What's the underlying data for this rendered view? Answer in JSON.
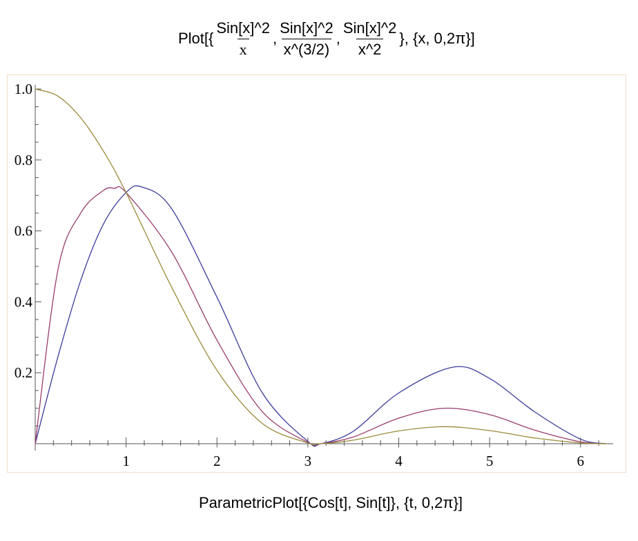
{
  "input_cell": {
    "prefix": "Plot[{",
    "fractions": [
      {
        "num": "Sin[x]^2",
        "den": "x"
      },
      {
        "num": "Sin[x]^2",
        "den": "x^(3/2)"
      },
      {
        "num": "Sin[x]^2",
        "den": "x^2"
      }
    ],
    "separator": ",",
    "suffix": "}, {x, 0,2π}]"
  },
  "bottom_cell": {
    "text": "ParametricPlot[{Cos[t], Sin[t]}, {t, 0,2π}]"
  },
  "chart_data": {
    "type": "line",
    "xlim": [
      0,
      6.2832
    ],
    "ylim": [
      0,
      1.0
    ],
    "x_ticks": [
      "1",
      "2",
      "3",
      "4",
      "5",
      "6"
    ],
    "y_ticks": [
      "0.2",
      "0.4",
      "0.6",
      "0.8",
      "1.0"
    ],
    "grid": false,
    "series": [
      {
        "color": "#3b3b9a",
        "x": [
          0,
          0.25,
          0.5,
          0.75,
          1.0,
          1.17,
          1.5,
          2.0,
          2.5,
          3.0,
          3.1416,
          3.5,
          4.0,
          4.6,
          5.0,
          5.5,
          6.0,
          6.2832
        ],
        "y": [
          0,
          0.245,
          0.46,
          0.619,
          0.708,
          0.724,
          0.663,
          0.413,
          0.143,
          0.0066,
          0,
          0.035,
          0.143,
          0.216,
          0.184,
          0.089,
          0.013,
          0
        ]
      },
      {
        "color": "#9a3b6a",
        "x": [
          0,
          0.25,
          0.5,
          0.75,
          0.87,
          1.0,
          1.5,
          2.0,
          2.5,
          3.0,
          3.1416,
          3.5,
          4.0,
          4.5,
          5.0,
          5.5,
          6.0,
          6.2832
        ],
        "y": [
          0,
          0.49,
          0.65,
          0.714,
          0.72,
          0.708,
          0.541,
          0.292,
          0.09,
          0.0038,
          0,
          0.019,
          0.072,
          0.1,
          0.082,
          0.038,
          0.0053,
          0
        ]
      },
      {
        "color": "#9a8a3b",
        "x": [
          0,
          0.25,
          0.5,
          0.75,
          1.0,
          1.5,
          2.0,
          2.5,
          3.0,
          3.1416,
          3.5,
          4.0,
          4.5,
          5.0,
          5.5,
          6.0,
          6.2832
        ],
        "y": [
          1.0,
          0.98,
          0.919,
          0.825,
          0.708,
          0.442,
          0.207,
          0.057,
          0.0022,
          0,
          0.01,
          0.036,
          0.048,
          0.037,
          0.016,
          0.0022,
          0
        ]
      }
    ]
  }
}
